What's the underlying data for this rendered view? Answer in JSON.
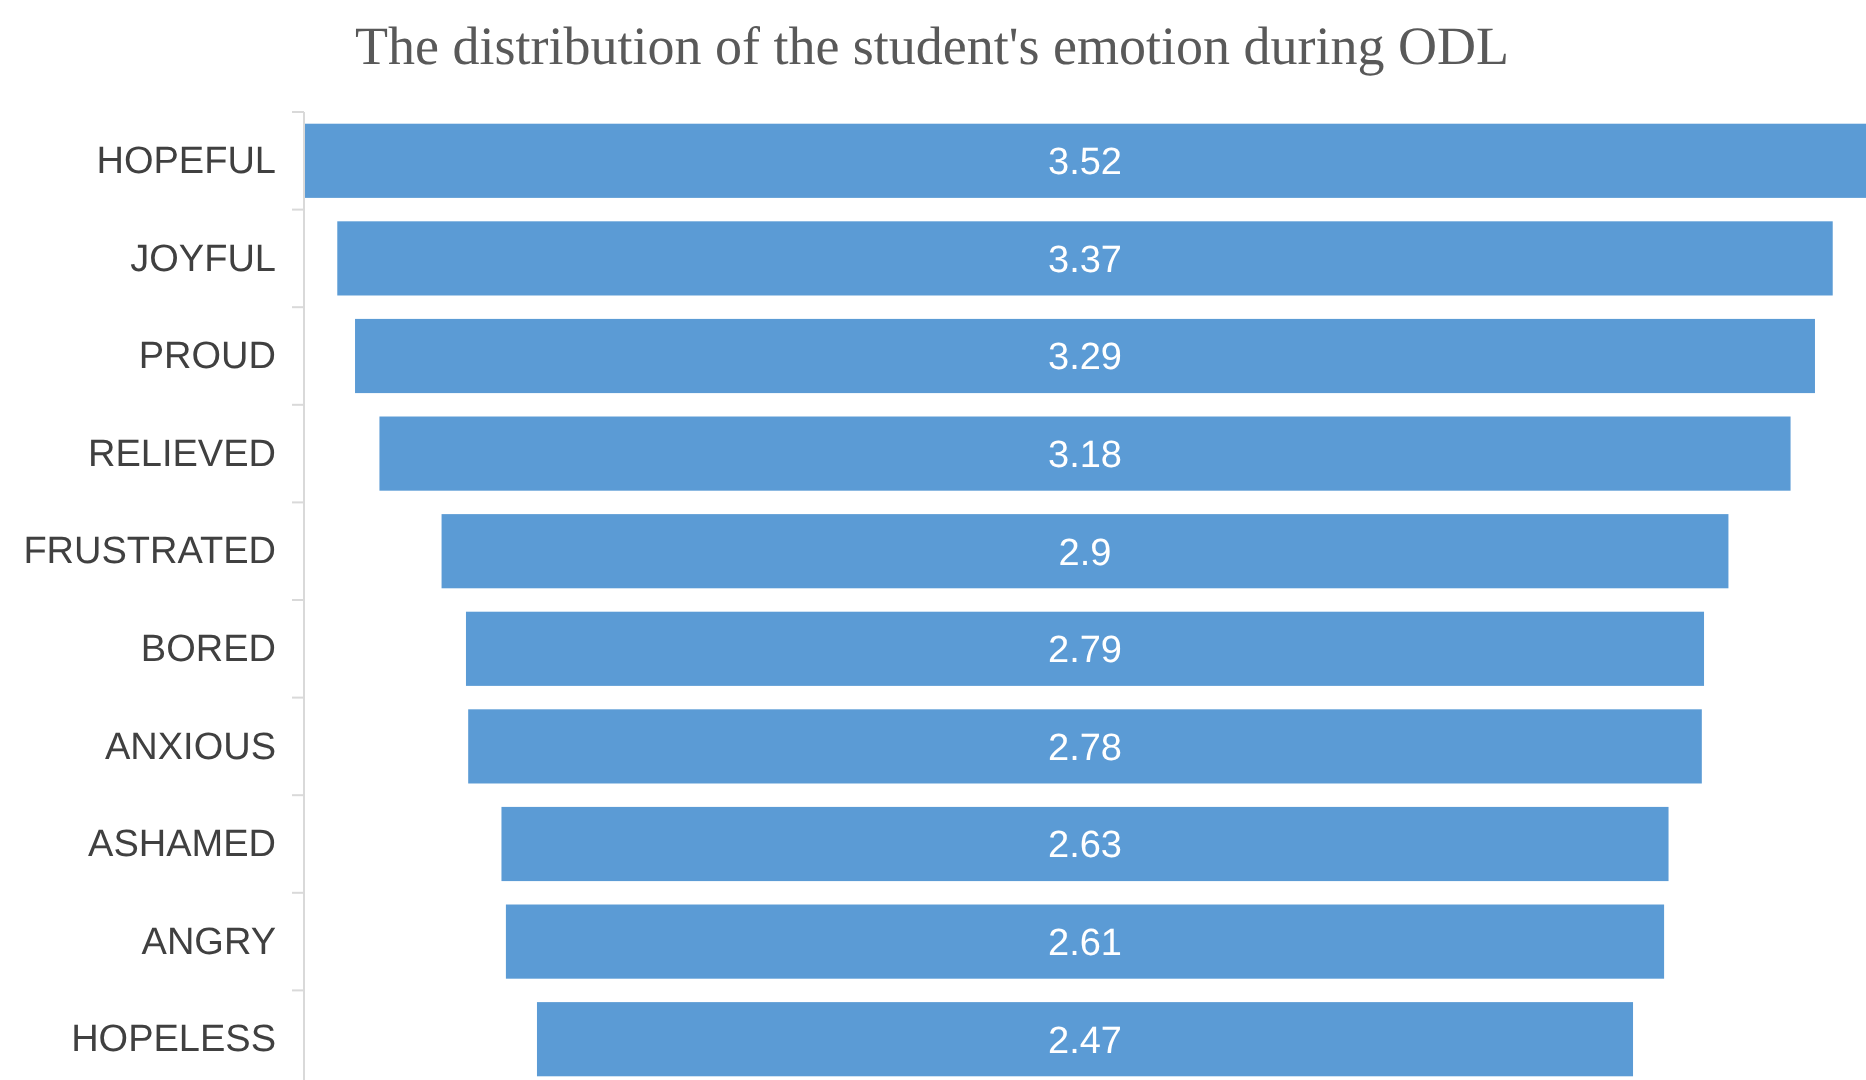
{
  "chart_data": {
    "type": "other",
    "title": "The distribution of the student's emotion during ODL",
    "categories": [
      "HOPEFUL",
      "JOYFUL",
      "PROUD",
      "RELIEVED",
      "FRUSTRATED",
      "BORED",
      "ANXIOUS",
      "ASHAMED",
      "ANGRY",
      "HOPELESS"
    ],
    "values": [
      3.52,
      3.37,
      3.29,
      3.18,
      2.9,
      2.79,
      2.78,
      2.63,
      2.61,
      2.47
    ],
    "color": "#5b9bd5",
    "data_labels": true
  }
}
